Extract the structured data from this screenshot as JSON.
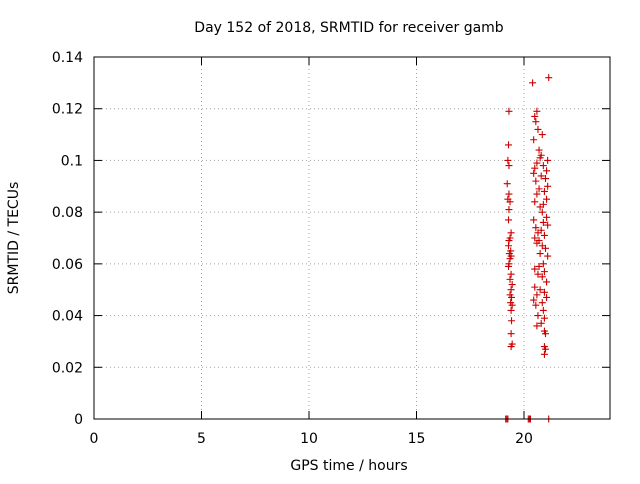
{
  "chart_data": {
    "type": "scatter",
    "title": "Day 152 of 2018, SRMTID for receiver gamb",
    "xlabel": "GPS time / hours",
    "ylabel": "SRMTID / TECUs",
    "xlim": [
      0,
      24
    ],
    "ylim": [
      0,
      0.14
    ],
    "x_ticks": [
      0,
      5,
      10,
      15,
      20
    ],
    "x_tick_labels": [
      "0",
      "5",
      "10",
      "15",
      "20"
    ],
    "y_ticks": [
      0,
      0.02,
      0.04,
      0.06,
      0.08,
      0.1,
      0.12,
      0.14
    ],
    "y_tick_labels": [
      "0",
      "0.02",
      "0.04",
      "0.06",
      "0.08",
      "0.1",
      "0.12",
      "0.14"
    ],
    "grid": true,
    "legend": "none",
    "marker": "plus",
    "color": "#cc0000",
    "series": [
      {
        "points": [
          [
            19.15,
            0.0
          ],
          [
            19.2,
            0.0
          ],
          [
            19.25,
            0.0
          ],
          [
            20.2,
            0.0
          ],
          [
            20.25,
            0.0
          ],
          [
            20.3,
            0.0
          ],
          [
            21.15,
            0.0
          ],
          [
            19.3,
            0.119
          ],
          [
            19.28,
            0.106
          ],
          [
            19.25,
            0.1
          ],
          [
            19.3,
            0.098
          ],
          [
            19.22,
            0.091
          ],
          [
            19.3,
            0.087
          ],
          [
            19.25,
            0.085
          ],
          [
            19.35,
            0.084
          ],
          [
            19.3,
            0.081
          ],
          [
            19.28,
            0.077
          ],
          [
            19.4,
            0.072
          ],
          [
            19.35,
            0.07
          ],
          [
            19.3,
            0.069
          ],
          [
            19.28,
            0.067
          ],
          [
            19.38,
            0.065
          ],
          [
            19.32,
            0.064
          ],
          [
            19.4,
            0.063
          ],
          [
            19.35,
            0.062
          ],
          [
            19.3,
            0.06
          ],
          [
            19.28,
            0.059
          ],
          [
            19.4,
            0.056
          ],
          [
            19.35,
            0.054
          ],
          [
            19.45,
            0.052
          ],
          [
            19.4,
            0.05
          ],
          [
            19.35,
            0.048
          ],
          [
            19.42,
            0.047
          ],
          [
            19.38,
            0.045
          ],
          [
            19.45,
            0.044
          ],
          [
            19.4,
            0.042
          ],
          [
            19.42,
            0.038
          ],
          [
            19.4,
            0.033
          ],
          [
            19.45,
            0.029
          ],
          [
            19.4,
            0.028
          ],
          [
            21.15,
            0.132
          ],
          [
            20.4,
            0.13
          ],
          [
            20.6,
            0.119
          ],
          [
            20.5,
            0.117
          ],
          [
            20.55,
            0.115
          ],
          [
            20.65,
            0.112
          ],
          [
            20.85,
            0.11
          ],
          [
            20.45,
            0.108
          ],
          [
            20.7,
            0.104
          ],
          [
            20.8,
            0.102
          ],
          [
            20.75,
            0.101
          ],
          [
            21.1,
            0.1
          ],
          [
            20.6,
            0.099
          ],
          [
            20.9,
            0.098
          ],
          [
            20.5,
            0.097
          ],
          [
            21.05,
            0.096
          ],
          [
            20.45,
            0.095
          ],
          [
            20.8,
            0.094
          ],
          [
            21.0,
            0.093
          ],
          [
            20.55,
            0.092
          ],
          [
            21.1,
            0.09
          ],
          [
            20.7,
            0.089
          ],
          [
            20.95,
            0.088
          ],
          [
            20.6,
            0.087
          ],
          [
            21.05,
            0.085
          ],
          [
            20.5,
            0.084
          ],
          [
            20.9,
            0.083
          ],
          [
            20.75,
            0.082
          ],
          [
            20.85,
            0.08
          ],
          [
            21.05,
            0.078
          ],
          [
            20.45,
            0.077
          ],
          [
            20.9,
            0.076
          ],
          [
            21.1,
            0.075
          ],
          [
            20.55,
            0.074
          ],
          [
            20.8,
            0.073
          ],
          [
            20.65,
            0.072
          ],
          [
            20.95,
            0.071
          ],
          [
            20.5,
            0.07
          ],
          [
            20.7,
            0.069
          ],
          [
            20.6,
            0.068
          ],
          [
            20.85,
            0.067
          ],
          [
            21.0,
            0.066
          ],
          [
            20.75,
            0.064
          ],
          [
            21.1,
            0.063
          ],
          [
            20.9,
            0.06
          ],
          [
            20.7,
            0.059
          ],
          [
            20.5,
            0.058
          ],
          [
            20.95,
            0.057
          ],
          [
            20.65,
            0.056
          ],
          [
            20.85,
            0.055
          ],
          [
            21.05,
            0.053
          ],
          [
            20.5,
            0.051
          ],
          [
            20.75,
            0.05
          ],
          [
            20.95,
            0.049
          ],
          [
            20.6,
            0.048
          ],
          [
            21.05,
            0.047
          ],
          [
            20.45,
            0.046
          ],
          [
            20.85,
            0.045
          ],
          [
            20.55,
            0.044
          ],
          [
            20.9,
            0.042
          ],
          [
            20.65,
            0.04
          ],
          [
            20.95,
            0.039
          ],
          [
            20.8,
            0.037
          ],
          [
            20.6,
            0.036
          ],
          [
            20.95,
            0.034
          ],
          [
            21.0,
            0.033
          ],
          [
            20.95,
            0.028
          ],
          [
            21.0,
            0.027
          ],
          [
            20.95,
            0.025
          ]
        ]
      }
    ]
  }
}
